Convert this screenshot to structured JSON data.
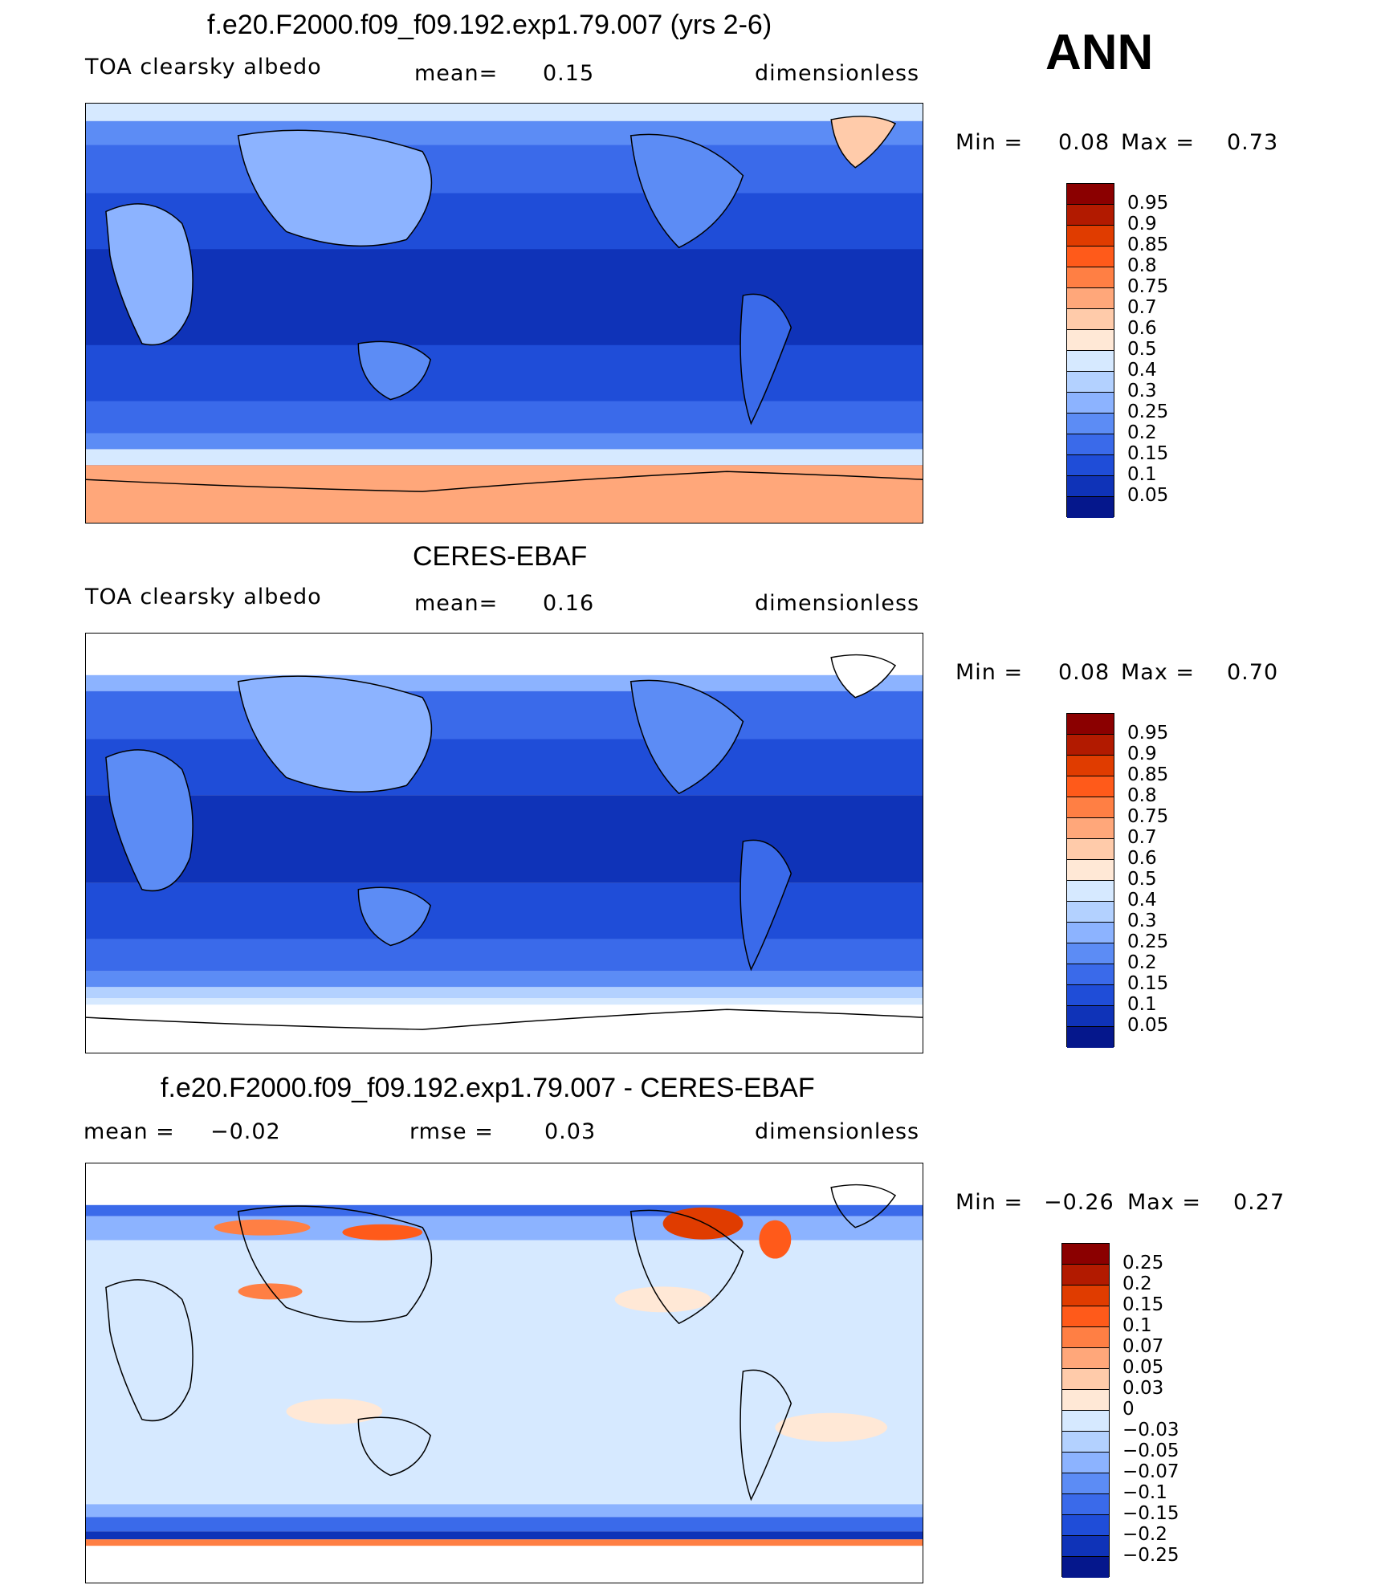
{
  "season": "ANN",
  "panels": [
    {
      "title": "f.e20.F2000.f09_f09.192.exp1.79.007 (yrs 2-6)",
      "left_label": "TOA clearsky albedo",
      "center_label": "mean=",
      "center_value": "0.15",
      "right_label": "dimensionless",
      "min_label": "Min =",
      "min_value": "0.08",
      "max_label": "Max =",
      "max_value": "0.73",
      "levels": [
        "0.95",
        "0.9",
        "0.85",
        "0.8",
        "0.75",
        "0.7",
        "0.6",
        "0.5",
        "0.4",
        "0.3",
        "0.25",
        "0.2",
        "0.15",
        "0.1",
        "0.05"
      ],
      "colors": [
        "#8b0000",
        "#b21a00",
        "#e03c00",
        "#ff5a1a",
        "#ff7f44",
        "#ffa77a",
        "#ffcbaa",
        "#ffe8d6",
        "#d6e9ff",
        "#b3d1ff",
        "#8cb3ff",
        "#5c8cf5",
        "#3a6aea",
        "#1f4dd8",
        "#0f33b8",
        "#05178c"
      ]
    },
    {
      "title": "CERES-EBAF",
      "left_label": "TOA clearsky albedo",
      "center_label": "mean=",
      "center_value": "0.16",
      "right_label": "dimensionless",
      "min_label": "Min =",
      "min_value": "0.08",
      "max_label": "Max =",
      "max_value": "0.70",
      "levels": [
        "0.95",
        "0.9",
        "0.85",
        "0.8",
        "0.75",
        "0.7",
        "0.6",
        "0.5",
        "0.4",
        "0.3",
        "0.25",
        "0.2",
        "0.15",
        "0.1",
        "0.05"
      ],
      "colors": [
        "#8b0000",
        "#b21a00",
        "#e03c00",
        "#ff5a1a",
        "#ff7f44",
        "#ffa77a",
        "#ffcbaa",
        "#ffe8d6",
        "#d6e9ff",
        "#b3d1ff",
        "#8cb3ff",
        "#5c8cf5",
        "#3a6aea",
        "#1f4dd8",
        "#0f33b8",
        "#05178c"
      ]
    },
    {
      "title": "f.e20.F2000.f09_f09.192.exp1.79.007 - CERES-EBAF",
      "left_label": "mean =",
      "left_value": "−0.02",
      "center_label": "rmse =",
      "center_value": "0.03",
      "right_label": "dimensionless",
      "min_label": "Min =",
      "min_value": "−0.26",
      "max_label": "Max =",
      "max_value": "0.27",
      "levels": [
        "0.25",
        "0.2",
        "0.15",
        "0.1",
        "0.07",
        "0.05",
        "0.03",
        "0",
        "−0.03",
        "−0.05",
        "−0.07",
        "−0.1",
        "−0.15",
        "−0.2",
        "−0.25"
      ],
      "colors": [
        "#8b0000",
        "#b21a00",
        "#e03c00",
        "#ff5a1a",
        "#ff7f44",
        "#ffa77a",
        "#ffcbaa",
        "#ffe8d6",
        "#d6e9ff",
        "#b3d1ff",
        "#8cb3ff",
        "#5c8cf5",
        "#3a6aea",
        "#1f4dd8",
        "#0f33b8",
        "#05178c"
      ]
    }
  ]
}
